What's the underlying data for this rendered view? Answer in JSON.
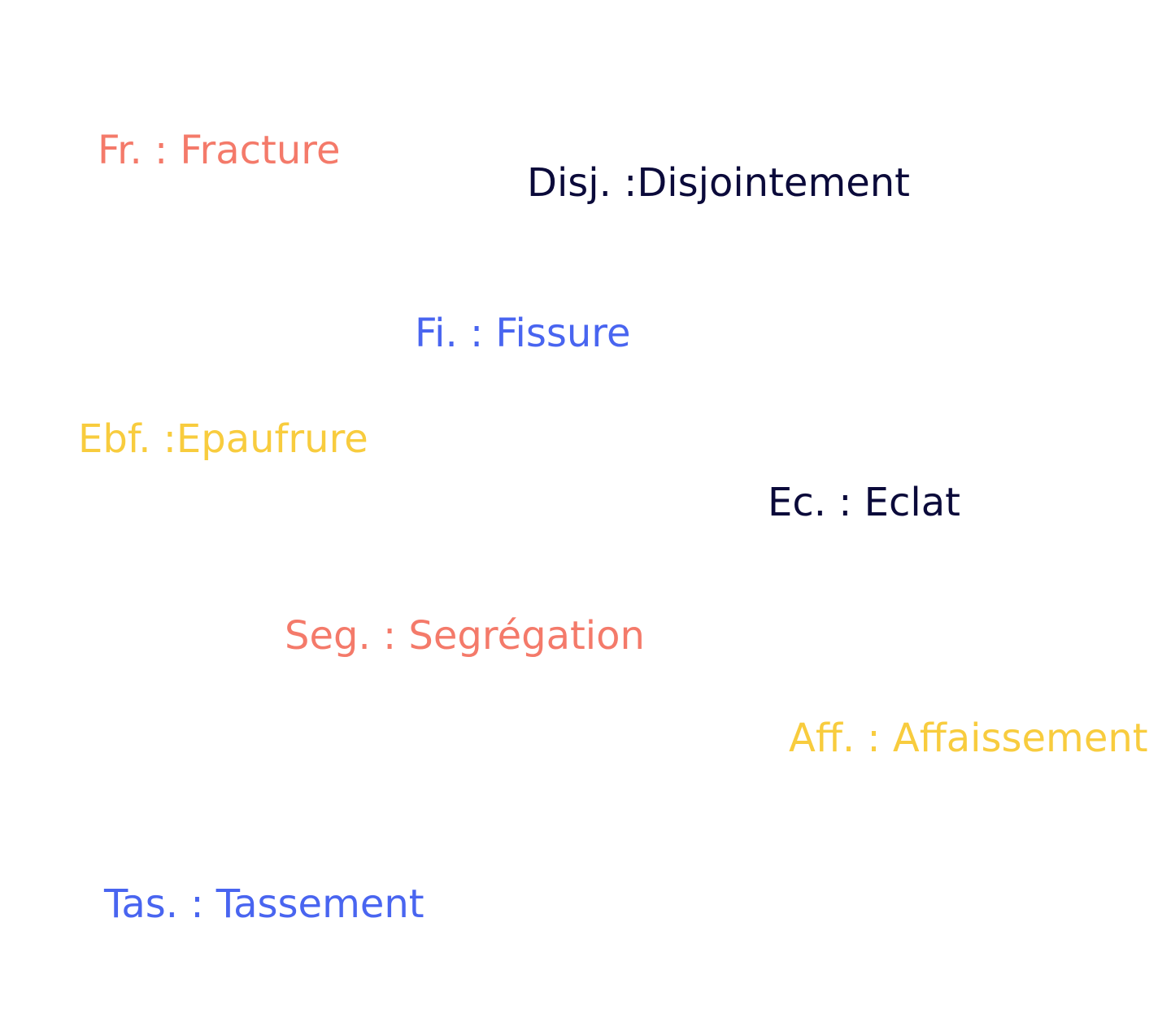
{
  "legend": {
    "items": [
      {
        "abbr": "Fr.",
        "text": "Fr. : Fracture",
        "color": "#f47a6a"
      },
      {
        "abbr": "Disj.",
        "text": "Disj. :Disjointement",
        "color": "#0b0a3a"
      },
      {
        "abbr": "Fi.",
        "text": "Fi. : Fissure",
        "color": "#4965f0"
      },
      {
        "abbr": "Ebf.",
        "text": "Ebf. :Epaufrure",
        "color": "#f8cc3e"
      },
      {
        "abbr": "Ec.",
        "text": "Ec. : Eclat",
        "color": "#0b0a3a"
      },
      {
        "abbr": "Seg.",
        "text": "Seg. : Segrégation",
        "color": "#f47a6a"
      },
      {
        "abbr": "Aff.",
        "text": "Aff. : Affaissement",
        "color": "#f8cc3e"
      },
      {
        "abbr": "Tas.",
        "text": "Tas. : Tassement",
        "color": "#4965f0"
      }
    ]
  }
}
